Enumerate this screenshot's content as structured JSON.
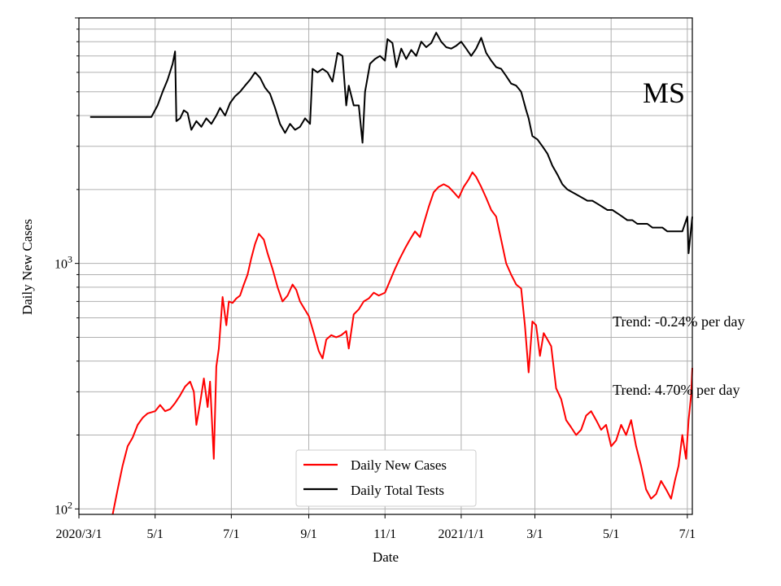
{
  "chart_data": {
    "type": "line",
    "title": "",
    "state_label": "MS",
    "xlabel": "Date",
    "ylabel": "Daily New Cases",
    "yscale": "log",
    "ylim": [
      95,
      10000
    ],
    "xlim": [
      "2020-03-01",
      "2021-07-05"
    ],
    "grid": true,
    "legend_position": "lower-center",
    "x_ticks": [
      {
        "date": "2020-03-01",
        "label": "2020/3/1"
      },
      {
        "date": "2020-05-01",
        "label": "5/1"
      },
      {
        "date": "2020-07-01",
        "label": "7/1"
      },
      {
        "date": "2020-09-01",
        "label": "9/1"
      },
      {
        "date": "2020-11-01",
        "label": "11/1"
      },
      {
        "date": "2021-01-01",
        "label": "2021/1/1"
      },
      {
        "date": "2021-03-01",
        "label": "3/1"
      },
      {
        "date": "2021-05-01",
        "label": "5/1"
      },
      {
        "date": "2021-07-01",
        "label": "7/1"
      }
    ],
    "y_ticks": [
      {
        "value": 100,
        "label": "10",
        "sup": "2"
      },
      {
        "value": 1000,
        "label": "10",
        "sup": "3"
      }
    ],
    "annotations": [
      {
        "text": "Trend: -0.24% per day",
        "anchor_date": "2021-05-01",
        "anchor_value": 580
      },
      {
        "text": "Trend: 4.70% per day",
        "anchor_date": "2021-05-01",
        "anchor_value": 305
      }
    ],
    "series": [
      {
        "name": "Daily New Cases",
        "color": "#ff0000",
        "points": [
          [
            "2020-03-28",
            95
          ],
          [
            "2020-04-01",
            120
          ],
          [
            "2020-04-05",
            150
          ],
          [
            "2020-04-09",
            180
          ],
          [
            "2020-04-13",
            195
          ],
          [
            "2020-04-17",
            220
          ],
          [
            "2020-04-21",
            235
          ],
          [
            "2020-04-25",
            245
          ],
          [
            "2020-05-01",
            250
          ],
          [
            "2020-05-05",
            265
          ],
          [
            "2020-05-09",
            250
          ],
          [
            "2020-05-13",
            255
          ],
          [
            "2020-05-17",
            270
          ],
          [
            "2020-05-21",
            290
          ],
          [
            "2020-05-25",
            315
          ],
          [
            "2020-05-29",
            330
          ],
          [
            "2020-06-01",
            300
          ],
          [
            "2020-06-03",
            220
          ],
          [
            "2020-06-06",
            270
          ],
          [
            "2020-06-09",
            340
          ],
          [
            "2020-06-12",
            260
          ],
          [
            "2020-06-14",
            330
          ],
          [
            "2020-06-17",
            160
          ],
          [
            "2020-06-19",
            380
          ],
          [
            "2020-06-21",
            450
          ],
          [
            "2020-06-24",
            730
          ],
          [
            "2020-06-27",
            560
          ],
          [
            "2020-06-29",
            700
          ],
          [
            "2020-07-02",
            690
          ],
          [
            "2020-07-05",
            720
          ],
          [
            "2020-07-08",
            740
          ],
          [
            "2020-07-11",
            820
          ],
          [
            "2020-07-14",
            900
          ],
          [
            "2020-07-17",
            1050
          ],
          [
            "2020-07-20",
            1200
          ],
          [
            "2020-07-23",
            1320
          ],
          [
            "2020-07-27",
            1250
          ],
          [
            "2020-07-30",
            1100
          ],
          [
            "2020-08-03",
            950
          ],
          [
            "2020-08-07",
            800
          ],
          [
            "2020-08-11",
            700
          ],
          [
            "2020-08-15",
            740
          ],
          [
            "2020-08-19",
            820
          ],
          [
            "2020-08-22",
            780
          ],
          [
            "2020-08-25",
            700
          ],
          [
            "2020-08-28",
            660
          ],
          [
            "2020-09-01",
            610
          ],
          [
            "2020-09-05",
            520
          ],
          [
            "2020-09-09",
            440
          ],
          [
            "2020-09-12",
            410
          ],
          [
            "2020-09-15",
            490
          ],
          [
            "2020-09-19",
            510
          ],
          [
            "2020-09-23",
            500
          ],
          [
            "2020-09-27",
            510
          ],
          [
            "2020-10-01",
            530
          ],
          [
            "2020-10-03",
            450
          ],
          [
            "2020-10-07",
            620
          ],
          [
            "2020-10-11",
            650
          ],
          [
            "2020-10-15",
            700
          ],
          [
            "2020-10-19",
            720
          ],
          [
            "2020-10-23",
            760
          ],
          [
            "2020-10-27",
            740
          ],
          [
            "2020-11-01",
            760
          ],
          [
            "2020-11-05",
            850
          ],
          [
            "2020-11-09",
            950
          ],
          [
            "2020-11-13",
            1050
          ],
          [
            "2020-11-17",
            1150
          ],
          [
            "2020-11-21",
            1250
          ],
          [
            "2020-11-25",
            1350
          ],
          [
            "2020-11-29",
            1280
          ],
          [
            "2020-12-02",
            1450
          ],
          [
            "2020-12-06",
            1700
          ],
          [
            "2020-12-10",
            1950
          ],
          [
            "2020-12-14",
            2050
          ],
          [
            "2020-12-18",
            2100
          ],
          [
            "2020-12-22",
            2050
          ],
          [
            "2020-12-26",
            1950
          ],
          [
            "2020-12-30",
            1850
          ],
          [
            "2021-01-03",
            2050
          ],
          [
            "2021-01-07",
            2200
          ],
          [
            "2021-01-10",
            2350
          ],
          [
            "2021-01-13",
            2250
          ],
          [
            "2021-01-17",
            2050
          ],
          [
            "2021-01-21",
            1850
          ],
          [
            "2021-01-25",
            1650
          ],
          [
            "2021-01-29",
            1550
          ],
          [
            "2021-02-02",
            1250
          ],
          [
            "2021-02-06",
            1000
          ],
          [
            "2021-02-10",
            900
          ],
          [
            "2021-02-14",
            820
          ],
          [
            "2021-02-18",
            790
          ],
          [
            "2021-02-21",
            560
          ],
          [
            "2021-02-24",
            360
          ],
          [
            "2021-02-27",
            580
          ],
          [
            "2021-03-02",
            560
          ],
          [
            "2021-03-05",
            420
          ],
          [
            "2021-03-08",
            520
          ],
          [
            "2021-03-11",
            490
          ],
          [
            "2021-03-14",
            460
          ],
          [
            "2021-03-18",
            310
          ],
          [
            "2021-03-22",
            280
          ],
          [
            "2021-03-26",
            230
          ],
          [
            "2021-03-30",
            215
          ],
          [
            "2021-04-03",
            200
          ],
          [
            "2021-04-07",
            210
          ],
          [
            "2021-04-11",
            240
          ],
          [
            "2021-04-15",
            250
          ],
          [
            "2021-04-19",
            230
          ],
          [
            "2021-04-23",
            210
          ],
          [
            "2021-04-27",
            220
          ],
          [
            "2021-05-01",
            180
          ],
          [
            "2021-05-05",
            190
          ],
          [
            "2021-05-09",
            220
          ],
          [
            "2021-05-13",
            200
          ],
          [
            "2021-05-17",
            230
          ],
          [
            "2021-05-21",
            180
          ],
          [
            "2021-05-25",
            150
          ],
          [
            "2021-05-29",
            120
          ],
          [
            "2021-06-02",
            110
          ],
          [
            "2021-06-06",
            115
          ],
          [
            "2021-06-10",
            130
          ],
          [
            "2021-06-14",
            120
          ],
          [
            "2021-06-18",
            110
          ],
          [
            "2021-06-21",
            130
          ],
          [
            "2021-06-24",
            150
          ],
          [
            "2021-06-27",
            200
          ],
          [
            "2021-06-30",
            160
          ],
          [
            "2021-07-02",
            230
          ],
          [
            "2021-07-04",
            290
          ],
          [
            "2021-07-05",
            375
          ]
        ]
      },
      {
        "name": "Daily Total Tests",
        "color": "#000000",
        "points": [
          [
            "2020-03-10",
            3950
          ],
          [
            "2020-04-28",
            3950
          ],
          [
            "2020-05-03",
            4400
          ],
          [
            "2020-05-07",
            5000
          ],
          [
            "2020-05-11",
            5600
          ],
          [
            "2020-05-15",
            6500
          ],
          [
            "2020-05-17",
            7300
          ],
          [
            "2020-05-18",
            3800
          ],
          [
            "2020-05-21",
            3900
          ],
          [
            "2020-05-24",
            4200
          ],
          [
            "2020-05-27",
            4100
          ],
          [
            "2020-05-30",
            3500
          ],
          [
            "2020-06-03",
            3800
          ],
          [
            "2020-06-07",
            3600
          ],
          [
            "2020-06-11",
            3900
          ],
          [
            "2020-06-15",
            3700
          ],
          [
            "2020-06-19",
            4000
          ],
          [
            "2020-06-22",
            4300
          ],
          [
            "2020-06-26",
            4000
          ],
          [
            "2020-06-30",
            4500
          ],
          [
            "2020-07-04",
            4800
          ],
          [
            "2020-07-08",
            5000
          ],
          [
            "2020-07-12",
            5300
          ],
          [
            "2020-07-16",
            5600
          ],
          [
            "2020-07-20",
            6000
          ],
          [
            "2020-07-24",
            5700
          ],
          [
            "2020-07-28",
            5200
          ],
          [
            "2020-08-01",
            4900
          ],
          [
            "2020-08-05",
            4300
          ],
          [
            "2020-08-09",
            3700
          ],
          [
            "2020-08-13",
            3400
          ],
          [
            "2020-08-17",
            3700
          ],
          [
            "2020-08-21",
            3500
          ],
          [
            "2020-08-25",
            3600
          ],
          [
            "2020-08-29",
            3900
          ],
          [
            "2020-09-02",
            3700
          ],
          [
            "2020-09-04",
            6200
          ],
          [
            "2020-09-08",
            6000
          ],
          [
            "2020-09-12",
            6200
          ],
          [
            "2020-09-16",
            6000
          ],
          [
            "2020-09-20",
            5500
          ],
          [
            "2020-09-24",
            7200
          ],
          [
            "2020-09-28",
            7000
          ],
          [
            "2020-10-01",
            4400
          ],
          [
            "2020-10-03",
            5300
          ],
          [
            "2020-10-07",
            4400
          ],
          [
            "2020-10-11",
            4400
          ],
          [
            "2020-10-14",
            3100
          ],
          [
            "2020-10-16",
            5000
          ],
          [
            "2020-10-20",
            6500
          ],
          [
            "2020-10-24",
            6800
          ],
          [
            "2020-10-28",
            7000
          ],
          [
            "2020-11-01",
            6700
          ],
          [
            "2020-11-03",
            8200
          ],
          [
            "2020-11-07",
            7900
          ],
          [
            "2020-11-10",
            6300
          ],
          [
            "2020-11-14",
            7500
          ],
          [
            "2020-11-18",
            6800
          ],
          [
            "2020-11-22",
            7400
          ],
          [
            "2020-11-26",
            7000
          ],
          [
            "2020-11-30",
            8000
          ],
          [
            "2020-12-04",
            7600
          ],
          [
            "2020-12-08",
            7900
          ],
          [
            "2020-12-12",
            8700
          ],
          [
            "2020-12-16",
            8000
          ],
          [
            "2020-12-20",
            7600
          ],
          [
            "2020-12-24",
            7500
          ],
          [
            "2020-12-28",
            7700
          ],
          [
            "2021-01-01",
            8000
          ],
          [
            "2021-01-05",
            7500
          ],
          [
            "2021-01-09",
            7000
          ],
          [
            "2021-01-13",
            7500
          ],
          [
            "2021-01-17",
            8300
          ],
          [
            "2021-01-21",
            7200
          ],
          [
            "2021-01-25",
            6700
          ],
          [
            "2021-01-29",
            6300
          ],
          [
            "2021-02-02",
            6200
          ],
          [
            "2021-02-06",
            5800
          ],
          [
            "2021-02-10",
            5400
          ],
          [
            "2021-02-14",
            5300
          ],
          [
            "2021-02-18",
            5000
          ],
          [
            "2021-02-22",
            4200
          ],
          [
            "2021-02-24",
            3900
          ],
          [
            "2021-02-27",
            3300
          ],
          [
            "2021-03-03",
            3200
          ],
          [
            "2021-03-07",
            3000
          ],
          [
            "2021-03-11",
            2800
          ],
          [
            "2021-03-15",
            2500
          ],
          [
            "2021-03-19",
            2300
          ],
          [
            "2021-03-23",
            2100
          ],
          [
            "2021-03-27",
            2000
          ],
          [
            "2021-03-31",
            1950
          ],
          [
            "2021-04-04",
            1900
          ],
          [
            "2021-04-08",
            1850
          ],
          [
            "2021-04-12",
            1800
          ],
          [
            "2021-04-16",
            1800
          ],
          [
            "2021-04-20",
            1750
          ],
          [
            "2021-04-24",
            1700
          ],
          [
            "2021-04-28",
            1650
          ],
          [
            "2021-05-02",
            1650
          ],
          [
            "2021-05-06",
            1600
          ],
          [
            "2021-05-10",
            1550
          ],
          [
            "2021-05-14",
            1500
          ],
          [
            "2021-05-18",
            1500
          ],
          [
            "2021-05-22",
            1450
          ],
          [
            "2021-05-26",
            1450
          ],
          [
            "2021-05-30",
            1450
          ],
          [
            "2021-06-03",
            1400
          ],
          [
            "2021-06-07",
            1400
          ],
          [
            "2021-06-11",
            1400
          ],
          [
            "2021-06-15",
            1350
          ],
          [
            "2021-06-19",
            1350
          ],
          [
            "2021-06-23",
            1350
          ],
          [
            "2021-06-27",
            1350
          ],
          [
            "2021-07-01",
            1550
          ],
          [
            "2021-07-02",
            1100
          ],
          [
            "2021-07-05",
            1550
          ]
        ]
      }
    ]
  }
}
